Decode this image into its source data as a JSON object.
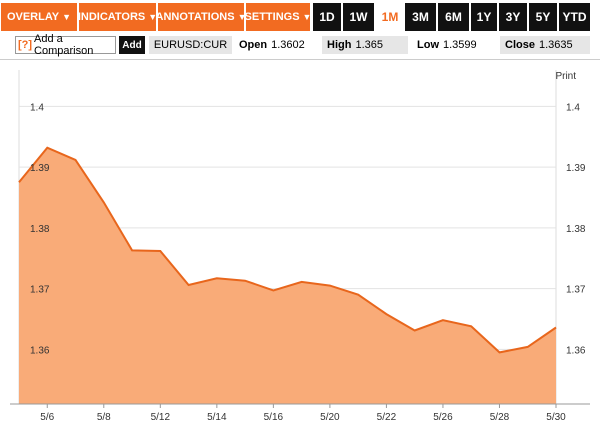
{
  "toolbar": {
    "menus": [
      {
        "label": "OVERLAY"
      },
      {
        "label": "INDICATORS"
      },
      {
        "label": "ANNOTATIONS"
      },
      {
        "label": "SETTINGS"
      }
    ],
    "ranges": [
      {
        "label": "1D"
      },
      {
        "label": "1W"
      },
      {
        "label": "1M"
      },
      {
        "label": "3M"
      },
      {
        "label": "6M"
      },
      {
        "label": "1Y"
      },
      {
        "label": "3Y"
      },
      {
        "label": "5Y"
      },
      {
        "label": "YTD"
      }
    ],
    "active_range": "1M"
  },
  "comparison": {
    "help_glyph": "[?]",
    "button_label": "Add a Comparison",
    "add_label": "Add",
    "ticker": "EURUSD:CUR"
  },
  "stats": {
    "open_label": "Open",
    "open_value": "1.3602",
    "high_label": "High",
    "high_value": "1.365",
    "low_label": "Low",
    "low_value": "1.3599",
    "close_label": "Close",
    "close_value": "1.3635"
  },
  "print_label": "Print",
  "colors": {
    "accent": "#f26b21",
    "area_fill": "#f9ab78",
    "line": "#e8661c"
  },
  "chart_data": {
    "type": "area",
    "x": [
      "5/5",
      "5/6",
      "5/7",
      "5/8",
      "5/9",
      "5/12",
      "5/13",
      "5/14",
      "5/15",
      "5/16",
      "5/19",
      "5/20",
      "5/21",
      "5/22",
      "5/23",
      "5/26",
      "5/27",
      "5/28",
      "5/29",
      "5/30"
    ],
    "values": [
      1.3875,
      1.3932,
      1.3912,
      1.3842,
      1.3763,
      1.3762,
      1.3706,
      1.3717,
      1.3713,
      1.3697,
      1.3711,
      1.3705,
      1.369,
      1.3658,
      1.3631,
      1.3648,
      1.3638,
      1.3595,
      1.3604,
      1.3636
    ],
    "x_tick_labels": [
      "5/6",
      "5/8",
      "5/12",
      "5/14",
      "5/16",
      "5/20",
      "5/22",
      "5/26",
      "5/28",
      "5/30"
    ],
    "y_tick_labels": [
      "1.36",
      "1.37",
      "1.38",
      "1.39",
      "1.4"
    ],
    "ylim": [
      1.351,
      1.406
    ],
    "grid": "horizontal"
  }
}
